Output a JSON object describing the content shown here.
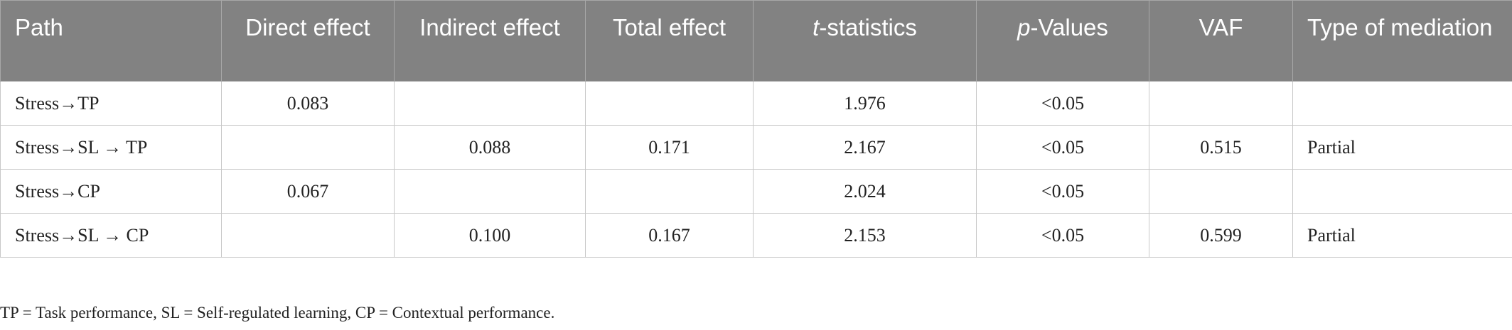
{
  "table": {
    "headers": [
      {
        "text": "Path",
        "italic_prefix": "",
        "align": "left"
      },
      {
        "text": "Direct effect",
        "italic_prefix": "",
        "align": "center"
      },
      {
        "text": "Indirect effect",
        "italic_prefix": "",
        "align": "center"
      },
      {
        "text": "Total effect",
        "italic_prefix": "",
        "align": "center"
      },
      {
        "text": "-statistics",
        "italic_prefix": "t",
        "align": "center"
      },
      {
        "text": "-Values",
        "italic_prefix": "p",
        "align": "center"
      },
      {
        "text": "VAF",
        "italic_prefix": "",
        "align": "center"
      },
      {
        "text": "Type of mediation",
        "italic_prefix": "",
        "align": "left"
      }
    ],
    "rows": [
      [
        "Stress→TP",
        "0.083",
        "",
        "",
        "1.976",
        "<0.05",
        "",
        ""
      ],
      [
        "Stress→SL → TP",
        "",
        "0.088",
        "0.171",
        "2.167",
        "<0.05",
        "0.515",
        "Partial"
      ],
      [
        "Stress→CP",
        "0.067",
        "",
        "",
        "2.024",
        "<0.05",
        "",
        ""
      ],
      [
        "Stress→SL → CP",
        "",
        "0.100",
        "0.167",
        "2.153",
        "<0.05",
        "0.599",
        "Partial"
      ]
    ]
  },
  "footnote": "TP = Task performance, SL = Self-regulated learning, CP = Contextual performance.",
  "colors": {
    "header_background": "#828282",
    "header_text": "#ffffff",
    "border": "#c8c8c8"
  }
}
